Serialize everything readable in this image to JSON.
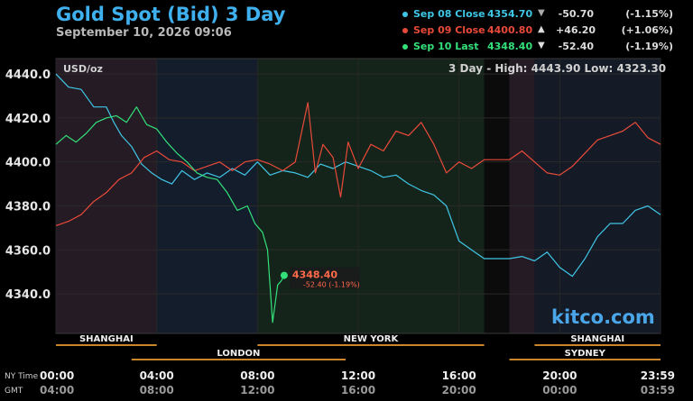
{
  "title": "Gold Spot (Bid) 3 Day",
  "subtitle": "September 10, 2026 09:06",
  "watermark": "kitco.com",
  "legend": [
    {
      "name": "Sep 08 Close",
      "value": "4354.70",
      "arrow": "▼",
      "change": "-50.70",
      "pct": "(-1.15%)",
      "color": "#3fc6e6"
    },
    {
      "name": "Sep 09 Close",
      "value": "4400.80",
      "arrow": "▲",
      "change": "+46.20",
      "pct": "(+1.06%)",
      "color": "#e84a3a"
    },
    {
      "name": "Sep 10 Last",
      "value": "4348.40",
      "arrow": "▼",
      "change": "-52.40",
      "pct": "(-1.19%)",
      "color": "#33e07a"
    }
  ],
  "high_low": {
    "label_prefix": "3 Day - High:",
    "high": "4443.90",
    "low_label": "Low:",
    "low": "4323.30"
  },
  "unit_label": "USD/oz",
  "last_label": {
    "price": "4348.40",
    "change": "-52.40 (-1.19%)"
  },
  "sessions": [
    {
      "name": "SHANGHAI",
      "start": 0,
      "end": 4
    },
    {
      "name": "NEW YORK",
      "start": 8,
      "end": 17
    },
    {
      "name": "SHANGHAI",
      "start": 19,
      "end": 24
    },
    {
      "name": "LONDON",
      "start": 3,
      "end": 11.5
    },
    {
      "name": "SYDNEY",
      "start": 18,
      "end": 24
    }
  ],
  "timezones": {
    "ny_label": "NY Time",
    "gmt_label": "GMT"
  },
  "chart_data": {
    "type": "line",
    "ylim": [
      4322,
      4447
    ],
    "xlim": [
      0,
      24
    ],
    "yticks": [
      4340.0,
      4360.0,
      4380.0,
      4400.0,
      4420.0,
      4440.0
    ],
    "ytick_labels": [
      "4340.0",
      "4360.0",
      "4380.0",
      "4400.0",
      "4420.0",
      "4440.0"
    ],
    "xticks": [
      0,
      4,
      8,
      12,
      16,
      20,
      24
    ],
    "xtick_labels_ny": [
      "00:00",
      "04:00",
      "08:00",
      "12:00",
      "16:00",
      "20:00",
      "23:59"
    ],
    "xtick_labels_gmt": [
      "04:00",
      "08:00",
      "12:00",
      "16:00",
      "20:00",
      "00:00",
      "03:59"
    ],
    "series": [
      {
        "name": "Sep 08 Close",
        "color": "#3fc6e6",
        "x": [
          0,
          0.5,
          1,
          1.5,
          2,
          2.3,
          2.6,
          3,
          3.4,
          3.8,
          4.2,
          4.6,
          5,
          5.5,
          6,
          6.5,
          7,
          7.5,
          8,
          8.5,
          9,
          9.5,
          10,
          10.5,
          11,
          11.5,
          12,
          12.5,
          13,
          13.5,
          14,
          14.5,
          15,
          15.5,
          16,
          16.5,
          17,
          17.5,
          18,
          18.5,
          19,
          19.5,
          20,
          20.5,
          21,
          21.5,
          22,
          22.5,
          23,
          23.5,
          24
        ],
        "y": [
          4440,
          4434,
          4433,
          4425,
          4425,
          4418,
          4412,
          4407,
          4399,
          4395,
          4392,
          4390,
          4396,
          4392,
          4395,
          4393,
          4397,
          4394,
          4400,
          4394,
          4396,
          4395,
          4393,
          4399,
          4397,
          4400,
          4398,
          4396,
          4393,
          4394,
          4390,
          4387,
          4385,
          4380,
          4364,
          4360,
          4356,
          4356,
          4356,
          4357,
          4355,
          4359,
          4352,
          4348,
          4356,
          4366,
          4372,
          4372,
          4378,
          4380,
          4376
        ]
      },
      {
        "name": "Sep 09 Close",
        "color": "#e84a3a",
        "x": [
          0,
          0.5,
          1,
          1.5,
          2,
          2.5,
          3,
          3.5,
          4,
          4.5,
          5,
          5.5,
          6,
          6.5,
          7,
          7.5,
          8,
          8.5,
          9,
          9.5,
          10,
          10.3,
          10.6,
          11,
          11.3,
          11.6,
          12,
          12.5,
          13,
          13.5,
          14,
          14.5,
          15,
          15.5,
          16,
          16.5,
          17,
          17.5,
          18,
          18.5,
          19,
          19.5,
          20,
          20.5,
          21,
          21.5,
          22,
          22.5,
          23,
          23.5,
          24
        ],
        "y": [
          4371,
          4373,
          4376,
          4382,
          4386,
          4392,
          4395,
          4402,
          4405,
          4401,
          4400,
          4396,
          4398,
          4400,
          4396,
          4400,
          4401,
          4399,
          4396,
          4400,
          4427,
          4395,
          4408,
          4402,
          4384,
          4409,
          4397,
          4408,
          4405,
          4414,
          4412,
          4418,
          4408,
          4395,
          4400,
          4397,
          4401,
          4401,
          4401,
          4405,
          4400,
          4395,
          4394,
          4398,
          4404,
          4410,
          4412,
          4414,
          4418,
          4411,
          4408
        ]
      },
      {
        "name": "Sep 10 Last",
        "color": "#33e07a",
        "x": [
          0,
          0.4,
          0.8,
          1.2,
          1.6,
          2,
          2.4,
          2.8,
          3.2,
          3.6,
          4,
          4.4,
          4.8,
          5.2,
          5.6,
          6,
          6.4,
          6.8,
          7.2,
          7.6,
          7.9,
          8.2,
          8.4,
          8.6,
          8.8,
          8.95,
          9.06
        ],
        "y": [
          4408,
          4412,
          4409,
          4413,
          4418,
          4420,
          4421,
          4418,
          4425,
          4417,
          4415,
          4409,
          4404,
          4400,
          4395,
          4393,
          4392,
          4386,
          4378,
          4380,
          4372,
          4368,
          4360,
          4327,
          4344,
          4346,
          4348.4
        ]
      }
    ]
  }
}
